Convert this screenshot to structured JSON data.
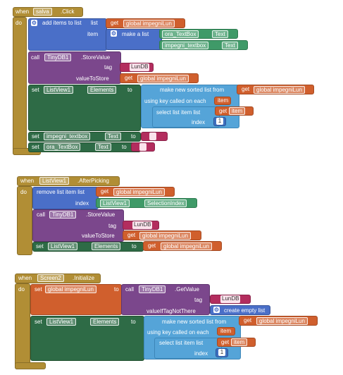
{
  "block1": {
    "when": "when",
    "component": "salva",
    "event": ".Click",
    "do": "do",
    "add_items": "add items to list",
    "list": "list",
    "get": "get",
    "global_var": "global impegniLun",
    "item": "item",
    "make_list": "make a list",
    "ora_textbox": "ora_TextBox",
    "text_prop": "Text",
    "impegni_textbox": "impegni_textbox",
    "call": "call",
    "tinydb": "TinyDB1",
    "store_value": ".StoreValue",
    "tag": "tag",
    "tag_value": "LunDB",
    "value_to_store": "valueToStore",
    "set": "set",
    "listview": "ListView1",
    "elements": "Elements",
    "to": "to",
    "make_sorted": "make new sorted list from",
    "using_key": "using key called on each",
    "item_var": "item",
    "select_item": "select list item  list",
    "index": "index",
    "index_value": "1",
    "impegni_set": "impegni_textbox",
    "ora_set": "ora_TextBox",
    "empty": " "
  },
  "block2": {
    "when": "when",
    "component": "ListView1",
    "event": ".AfterPicking",
    "do": "do",
    "remove_item": "remove list item  list",
    "get": "get",
    "global_var": "global impegniLun",
    "index": "index",
    "listview": "ListView1",
    "selection_index": "SelectionIndex",
    "call": "call",
    "tinydb": "TinyDB1",
    "store_value": ".StoreValue",
    "tag": "tag",
    "tag_value": "LunDB",
    "value_to_store": "valueToStore",
    "set": "set",
    "elements": "Elements",
    "to": "to"
  },
  "block3": {
    "when": "when",
    "component": "Screen2",
    "event": ".Initialize",
    "do": "do",
    "set": "set",
    "global_var": "global impegniLun",
    "to": "to",
    "call": "call",
    "tinydb": "TinyDB1",
    "get_value": ".GetValue",
    "tag": "tag",
    "tag_value": "LunDB",
    "value_if_not_there": "valueIfTagNotThere",
    "create_empty": "create empty list",
    "listview": "ListView1",
    "elements": "Elements",
    "make_sorted": "make new sorted list from",
    "get": "get",
    "using_key": "using key called on each",
    "item_var": "item",
    "select_item": "select list item  list",
    "index": "index",
    "index_value": "1"
  }
}
